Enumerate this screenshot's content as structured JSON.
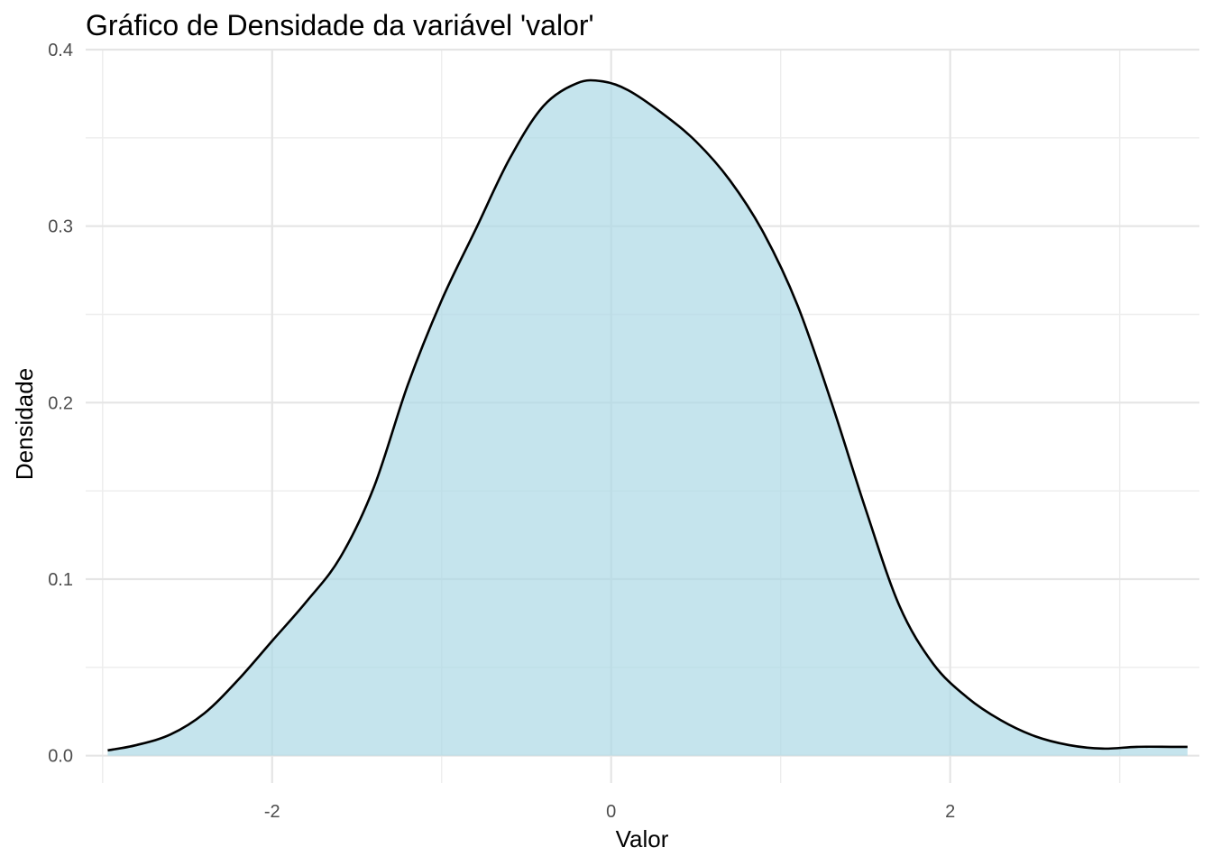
{
  "chart_data": {
    "type": "area",
    "title": "Gráfico de Densidade da variável 'valor'",
    "xlabel": "Valor",
    "ylabel": "Densidade",
    "xlim": [
      -3.1,
      3.47
    ],
    "ylim": [
      -0.0155,
      0.4
    ],
    "x_ticks": [
      -2,
      0,
      2
    ],
    "x_tick_labels": [
      "-2",
      "0",
      "2"
    ],
    "x_minor_ticks": [
      -3,
      -1,
      1,
      3
    ],
    "y_ticks": [
      0.0,
      0.1,
      0.2,
      0.3,
      0.4
    ],
    "y_tick_labels": [
      "0.0",
      "0.1",
      "0.2",
      "0.3",
      "0.4"
    ],
    "y_minor_ticks": [
      0.05,
      0.15,
      0.25,
      0.35
    ],
    "grid": true,
    "legend": "none",
    "colors": {
      "fill": "#add8e6",
      "fill_opacity": 0.7,
      "line": "#000000"
    },
    "series": [
      {
        "x": [
          -2.97,
          -2.8,
          -2.6,
          -2.4,
          -2.2,
          -2.0,
          -1.8,
          -1.6,
          -1.4,
          -1.2,
          -1.0,
          -0.8,
          -0.6,
          -0.4,
          -0.2,
          -0.05,
          0.1,
          0.3,
          0.5,
          0.7,
          0.9,
          1.1,
          1.3,
          1.5,
          1.7,
          1.9,
          2.1,
          2.3,
          2.5,
          2.7,
          2.9,
          3.1,
          3.3,
          3.4
        ],
        "y": [
          0.003,
          0.006,
          0.012,
          0.024,
          0.043,
          0.065,
          0.087,
          0.112,
          0.152,
          0.21,
          0.258,
          0.298,
          0.338,
          0.368,
          0.381,
          0.382,
          0.377,
          0.364,
          0.348,
          0.326,
          0.296,
          0.255,
          0.2,
          0.14,
          0.085,
          0.052,
          0.033,
          0.02,
          0.011,
          0.006,
          0.004,
          0.005,
          0.005,
          0.005
        ]
      }
    ]
  }
}
